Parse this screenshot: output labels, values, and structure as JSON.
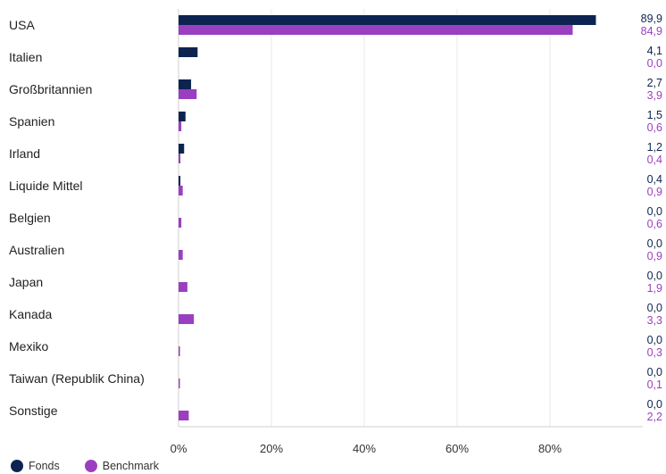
{
  "colors": {
    "fonds": "#0d2451",
    "benchmark": "#9b3fc1",
    "grid": "#e8e8e8",
    "axis": "#cfcfcf",
    "text": "#222222"
  },
  "chart_data": {
    "type": "bar",
    "orientation": "horizontal",
    "categories": [
      "USA",
      "Italien",
      "Großbritannien",
      "Spanien",
      "Irland",
      "Liquide Mittel",
      "Belgien",
      "Australien",
      "Japan",
      "Kanada",
      "Mexiko",
      "Taiwan (Republik China)",
      "Sonstige"
    ],
    "series": [
      {
        "name": "Fonds",
        "values": [
          89.9,
          4.1,
          2.7,
          1.5,
          1.2,
          0.4,
          0.0,
          0.0,
          0.0,
          0.0,
          0.0,
          0.0,
          0.0
        ],
        "labels": [
          "89,9",
          "4,1",
          "2,7",
          "1,5",
          "1,2",
          "0,4",
          "0,0",
          "0,0",
          "0,0",
          "0,0",
          "0,0",
          "0,0",
          "0,0"
        ]
      },
      {
        "name": "Benchmark",
        "values": [
          84.9,
          0.0,
          3.9,
          0.6,
          0.4,
          0.9,
          0.6,
          0.9,
          1.9,
          3.3,
          0.3,
          0.1,
          2.2
        ],
        "labels": [
          "84,9",
          "0,0",
          "3,9",
          "0,6",
          "0,4",
          "0,9",
          "0,6",
          "0,9",
          "1,9",
          "3,3",
          "0,3",
          "0,1",
          "2,2"
        ]
      }
    ],
    "xlim": [
      0,
      100
    ],
    "xticks": [
      0,
      20,
      40,
      60,
      80
    ],
    "xtick_labels": [
      "0%",
      "20%",
      "40%",
      "60%",
      "80%"
    ],
    "grid": true,
    "legend": "bottom-left"
  }
}
